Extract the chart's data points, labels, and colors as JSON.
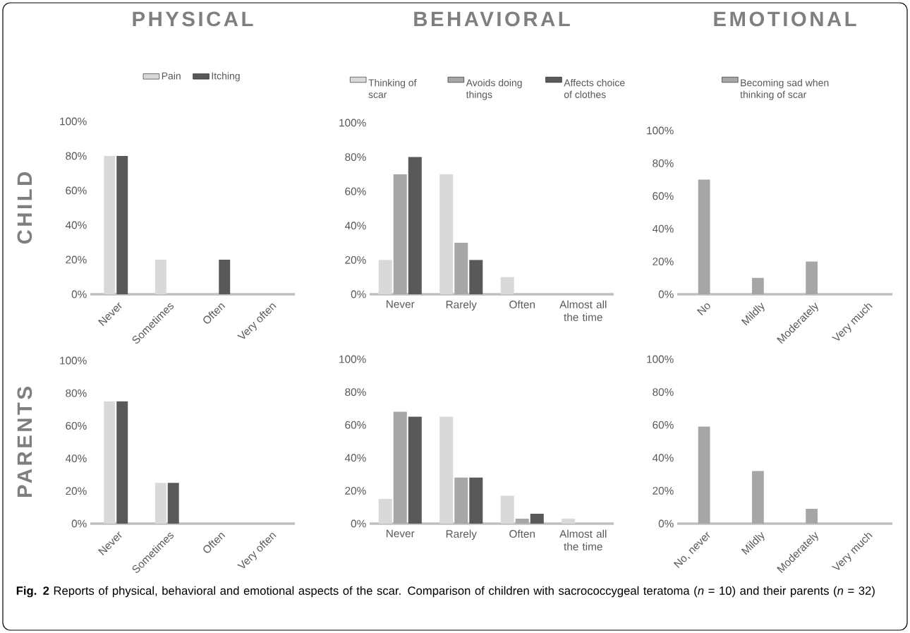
{
  "chart_data": [
    {
      "type": "bar",
      "title": "PHYSICAL",
      "ylabel": "CHILD",
      "legend": "top",
      "categories": [
        "Never",
        "Sometimes",
        "Often",
        "Very often"
      ],
      "ylim": [
        0,
        100
      ],
      "yticks": [
        {
          "value": 0,
          "label": "0%"
        },
        {
          "value": 20,
          "label": "20%"
        },
        {
          "value": 40,
          "label": "40%"
        },
        {
          "value": 60,
          "label": "60%"
        },
        {
          "value": 80,
          "label": "80%"
        },
        {
          "value": 100,
          "label": "100%"
        }
      ],
      "series": [
        {
          "name": "Pain",
          "color": "#d9d9d9",
          "values": [
            80,
            20,
            0,
            0
          ]
        },
        {
          "name": "Itching",
          "color": "#595959",
          "values": [
            80,
            0,
            20,
            0
          ]
        }
      ]
    },
    {
      "type": "bar",
      "title": "BEHAVIORAL",
      "legend": "top",
      "categories": [
        "Never",
        "Rarely",
        "Often",
        "Almost all the time"
      ],
      "ylim": [
        0,
        100
      ],
      "yticks": [
        {
          "value": 0,
          "label": "0%"
        },
        {
          "value": 20,
          "label": "20%"
        },
        {
          "value": 40,
          "label": "40%"
        },
        {
          "value": 60,
          "label": "60%"
        },
        {
          "value": 80,
          "label": "80%"
        },
        {
          "value": 100,
          "label": "100%"
        }
      ],
      "series": [
        {
          "name": "Thinking of scar",
          "color": "#d9d9d9",
          "values": [
            20,
            70,
            10,
            0
          ]
        },
        {
          "name": "Avoids doing things",
          "color": "#a6a6a6",
          "values": [
            70,
            30,
            0,
            0
          ]
        },
        {
          "name": "Affects choice of clothes",
          "color": "#595959",
          "values": [
            80,
            20,
            0,
            0
          ]
        }
      ]
    },
    {
      "type": "bar",
      "title": "EMOTIONAL",
      "legend": "top",
      "categories": [
        "No",
        "Mildly",
        "Moderately",
        "Very much"
      ],
      "ylim": [
        0,
        100
      ],
      "yticks": [
        {
          "value": 0,
          "label": "0%"
        },
        {
          "value": 20,
          "label": "20%"
        },
        {
          "value": 40,
          "label": "40%"
        },
        {
          "value": 60,
          "label": "60%"
        },
        {
          "value": 80,
          "label": "80%"
        },
        {
          "value": 100,
          "label": "100%"
        }
      ],
      "series": [
        {
          "name": "Becoming sad when thinking of scar",
          "color": "#a6a6a6",
          "values": [
            70,
            10,
            20,
            0
          ]
        }
      ]
    },
    {
      "type": "bar",
      "ylabel": "PARENTS",
      "categories": [
        "Never",
        "Sometimes",
        "Often",
        "Very often"
      ],
      "ylim": [
        0,
        100
      ],
      "yticks": [
        {
          "value": 0,
          "label": "0%"
        },
        {
          "value": 20,
          "label": "20%"
        },
        {
          "value": 40,
          "label": "40%"
        },
        {
          "value": 60,
          "label": "60%"
        },
        {
          "value": 80,
          "label": "80%"
        },
        {
          "value": 100,
          "label": "100%"
        }
      ],
      "series": [
        {
          "color": "#d9d9d9",
          "values": [
            75,
            25,
            0,
            0
          ]
        },
        {
          "color": "#595959",
          "values": [
            75,
            25,
            0,
            0
          ]
        }
      ]
    },
    {
      "type": "bar",
      "categories": [
        "Never",
        "Rarely",
        "Often",
        "Almost all the time"
      ],
      "ylim": [
        0,
        100
      ],
      "yticks": [
        {
          "value": 0,
          "label": "0%"
        },
        {
          "value": 20,
          "label": "20%"
        },
        {
          "value": 40,
          "label": "40%"
        },
        {
          "value": 60,
          "label": "60%"
        },
        {
          "value": 80,
          "label": "80%"
        },
        {
          "value": 100,
          "label": "100%"
        }
      ],
      "series": [
        {
          "color": "#d9d9d9",
          "values": [
            15,
            65,
            17,
            3
          ]
        },
        {
          "color": "#a6a6a6",
          "values": [
            68,
            28,
            3,
            0
          ]
        },
        {
          "color": "#595959",
          "values": [
            65,
            28,
            6,
            0
          ]
        }
      ]
    },
    {
      "type": "bar",
      "categories": [
        "No, never",
        "Mildly",
        "Moderately",
        "Very much"
      ],
      "ylim": [
        0,
        100
      ],
      "yticks": [
        {
          "value": 0,
          "label": "0%"
        },
        {
          "value": 20,
          "label": "20%"
        },
        {
          "value": 40,
          "label": "40%"
        },
        {
          "value": 60,
          "label": "60%"
        },
        {
          "value": 80,
          "label": "80%"
        },
        {
          "value": 100,
          "label": "100%"
        }
      ],
      "series": [
        {
          "color": "#a6a6a6",
          "values": [
            59,
            32,
            9,
            0
          ]
        }
      ],
      "annotations": [
        "**Fig. 2** Reports of physical, behavioral and emotional aspects of the scar. Comparison of children with sacrococcygeal teratoma (*n* = 10) and their parents (*n* = 32)"
      ]
    }
  ]
}
